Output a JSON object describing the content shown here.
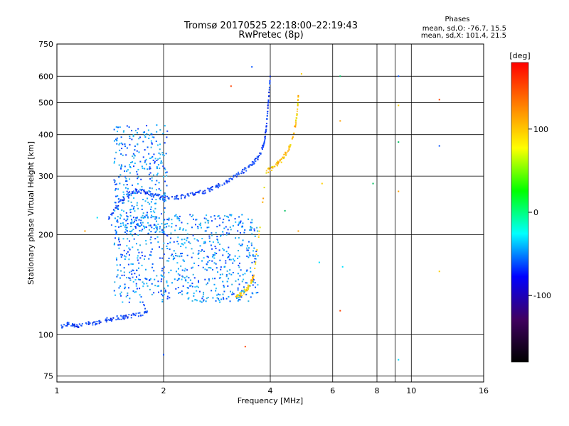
{
  "chart_data": {
    "type": "scatter",
    "title": "Tromsø 20170525 22:18:00–22:19:43",
    "subtitle": "RwPretec (8p)",
    "xlabel": "Frequency [MHz]",
    "ylabel": "Stationary phase Virtual Height [km]",
    "x_scale": "log",
    "y_scale": "log",
    "xlim": [
      1,
      16
    ],
    "ylim": [
      72,
      750
    ],
    "xticks": [
      1,
      2,
      4,
      6,
      8,
      10,
      16
    ],
    "xtick_labels": [
      "1",
      "2",
      "4",
      "6",
      "8",
      "10",
      "16"
    ],
    "yticks": [
      75,
      100,
      200,
      300,
      400,
      500,
      600,
      750
    ],
    "ytick_labels": [
      "75",
      "100",
      "200",
      "300",
      "400",
      "500",
      "600",
      "750"
    ],
    "grid": true,
    "colorbar": {
      "label": "[deg]",
      "range": [
        -180,
        180
      ],
      "ticks": [
        100,
        0,
        -100
      ],
      "tick_labels": [
        "100",
        "0",
        "-100"
      ],
      "colors": [
        "#ff0000",
        "#ff8000",
        "#ffff00",
        "#00ff00",
        "#00ffff",
        "#0000ff",
        "#400060",
        "#000000"
      ]
    },
    "stats": {
      "heading": "Phases",
      "line1": "mean, sd,O: -76.7, 15.5",
      "line2": "mean, sd,X: 101.4, 21.5"
    },
    "o_trace": [
      [
        1.02,
        105
      ],
      [
        1.08,
        108
      ],
      [
        1.15,
        106
      ],
      [
        1.25,
        108
      ],
      [
        1.35,
        110
      ],
      [
        1.45,
        112
      ],
      [
        1.55,
        113
      ],
      [
        1.7,
        115
      ],
      [
        1.8,
        117
      ],
      [
        1.4,
        225
      ],
      [
        1.5,
        250
      ],
      [
        1.6,
        265
      ],
      [
        1.7,
        272
      ],
      [
        1.8,
        268
      ],
      [
        1.9,
        262
      ],
      [
        2.0,
        258
      ],
      [
        2.2,
        260
      ],
      [
        2.4,
        264
      ],
      [
        2.6,
        270
      ],
      [
        2.8,
        278
      ],
      [
        3.0,
        288
      ],
      [
        3.2,
        300
      ],
      [
        3.4,
        314
      ],
      [
        3.6,
        330
      ],
      [
        3.75,
        350
      ],
      [
        3.85,
        380
      ],
      [
        3.9,
        420
      ],
      [
        3.95,
        500
      ],
      [
        4.0,
        600
      ]
    ],
    "x_trace": [
      [
        3.2,
        130
      ],
      [
        3.3,
        132
      ],
      [
        3.45,
        138
      ],
      [
        3.55,
        145
      ],
      [
        3.6,
        150
      ],
      [
        3.9,
        310
      ],
      [
        4.1,
        320
      ],
      [
        4.3,
        335
      ],
      [
        4.5,
        360
      ],
      [
        4.65,
        400
      ],
      [
        4.75,
        450
      ],
      [
        4.8,
        520
      ]
    ],
    "scattered_points": [
      [
        1.2,
        205
      ],
      [
        1.3,
        225
      ],
      [
        3.1,
        560
      ],
      [
        3.55,
        640
      ],
      [
        4.9,
        610
      ],
      [
        6.3,
        600
      ],
      [
        6.3,
        440
      ],
      [
        6.4,
        160
      ],
      [
        6.3,
        118
      ],
      [
        9.2,
        600
      ],
      [
        9.2,
        490
      ],
      [
        9.2,
        380
      ],
      [
        9.2,
        270
      ],
      [
        9.2,
        84
      ],
      [
        12.0,
        510
      ],
      [
        12.0,
        370
      ],
      [
        12.0,
        155
      ],
      [
        4.4,
        236
      ],
      [
        4.8,
        205
      ],
      [
        5.5,
        165
      ],
      [
        3.4,
        92
      ],
      [
        2.0,
        87
      ],
      [
        5.6,
        285
      ],
      [
        7.8,
        285
      ]
    ]
  }
}
